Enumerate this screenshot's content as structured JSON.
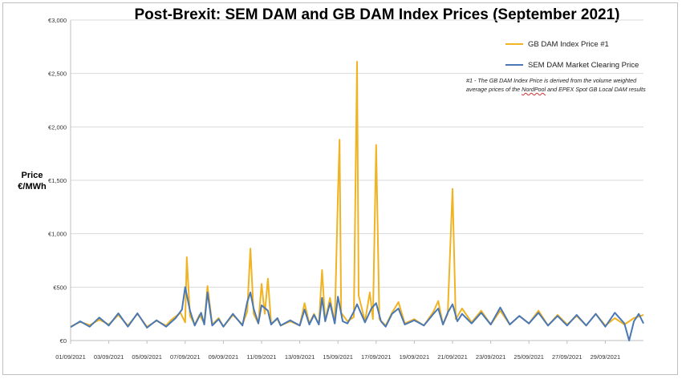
{
  "chart_data": {
    "type": "line",
    "title": "Post-Brexit: SEM DAM and GB DAM Index Prices (September 2021)",
    "ylabel_line1": "Price",
    "ylabel_line2": "€/MWh",
    "xlabel": "",
    "ylim": [
      0,
      3000
    ],
    "yticks": [
      0,
      500,
      1000,
      1500,
      2000,
      2500,
      3000
    ],
    "ytick_labels": [
      "€0",
      "€500",
      "€1,000",
      "€1,500",
      "€2,000",
      "€2,500",
      "€3,000"
    ],
    "x_start": "2021-09-01",
    "x_end": "2021-10-01",
    "xtick_labels": [
      "01/09/2021",
      "03/09/2021",
      "05/09/2021",
      "07/09/2021",
      "09/09/2021",
      "11/09/2021",
      "13/09/2021",
      "15/09/2021",
      "17/09/2021",
      "19/09/2021",
      "21/09/2021",
      "23/09/2021",
      "25/09/2021",
      "27/09/2021",
      "29/09/2021"
    ],
    "grid": "horizontal",
    "legend_position": "top-right",
    "series": [
      {
        "name": "GB DAM Index Price #1",
        "color": "#f0b323",
        "points": [
          [
            "2021-09-01",
            130
          ],
          [
            "2021-09-01 12:00",
            175
          ],
          [
            "2021-09-02",
            145
          ],
          [
            "2021-09-02 12:00",
            195
          ],
          [
            "2021-09-03",
            150
          ],
          [
            "2021-09-03 12:00",
            240
          ],
          [
            "2021-09-04",
            140
          ],
          [
            "2021-09-04 12:00",
            250
          ],
          [
            "2021-09-05",
            130
          ],
          [
            "2021-09-05 12:00",
            185
          ],
          [
            "2021-09-06",
            140
          ],
          [
            "2021-09-06 06:00",
            190
          ],
          [
            "2021-09-06 18:00",
            260
          ],
          [
            "2021-09-07",
            170
          ],
          [
            "2021-09-07 02:00",
            780
          ],
          [
            "2021-09-07 06:00",
            230
          ],
          [
            "2021-09-07 12:00",
            150
          ],
          [
            "2021-09-07 18:00",
            240
          ],
          [
            "2021-09-08",
            160
          ],
          [
            "2021-09-08 04:00",
            510
          ],
          [
            "2021-09-08 10:00",
            150
          ],
          [
            "2021-09-08 18:00",
            210
          ],
          [
            "2021-09-09",
            130
          ],
          [
            "2021-09-09 12:00",
            240
          ],
          [
            "2021-09-10",
            150
          ],
          [
            "2021-09-10 06:00",
            270
          ],
          [
            "2021-09-10 10:00",
            860
          ],
          [
            "2021-09-10 14:00",
            250
          ],
          [
            "2021-09-10 20:00",
            160
          ],
          [
            "2021-09-11",
            530
          ],
          [
            "2021-09-11 04:00",
            250
          ],
          [
            "2021-09-11 08:00",
            580
          ],
          [
            "2021-09-11 12:00",
            160
          ],
          [
            "2021-09-11 20:00",
            200
          ],
          [
            "2021-09-12",
            140
          ],
          [
            "2021-09-12 12:00",
            180
          ],
          [
            "2021-09-13",
            140
          ],
          [
            "2021-09-13 06:00",
            350
          ],
          [
            "2021-09-13 12:00",
            160
          ],
          [
            "2021-09-13 18:00",
            250
          ],
          [
            "2021-09-14",
            150
          ],
          [
            "2021-09-14 04:00",
            660
          ],
          [
            "2021-09-14 08:00",
            180
          ],
          [
            "2021-09-14 14:00",
            400
          ],
          [
            "2021-09-14 20:00",
            160
          ],
          [
            "2021-09-15",
            1370
          ],
          [
            "2021-09-15 02:00",
            1880
          ],
          [
            "2021-09-15 04:00",
            260
          ],
          [
            "2021-09-15 12:00",
            180
          ],
          [
            "2021-09-15 20:00",
            220
          ],
          [
            "2021-09-16",
            2610
          ],
          [
            "2021-09-16 02:00",
            420
          ],
          [
            "2021-09-16 10:00",
            180
          ],
          [
            "2021-09-16 16:00",
            450
          ],
          [
            "2021-09-16 20:00",
            200
          ],
          [
            "2021-09-17",
            1830
          ],
          [
            "2021-09-17 04:00",
            200
          ],
          [
            "2021-09-17 12:00",
            140
          ],
          [
            "2021-09-17 20:00",
            260
          ],
          [
            "2021-09-18 04:00",
            360
          ],
          [
            "2021-09-18 12:00",
            160
          ],
          [
            "2021-09-19",
            200
          ],
          [
            "2021-09-19 12:00",
            140
          ],
          [
            "2021-09-20",
            270
          ],
          [
            "2021-09-20 06:00",
            370
          ],
          [
            "2021-09-20 12:00",
            150
          ],
          [
            "2021-09-20 18:00",
            250
          ],
          [
            "2021-09-21",
            1420
          ],
          [
            "2021-09-21 04:00",
            200
          ],
          [
            "2021-09-21 12:00",
            300
          ],
          [
            "2021-09-22",
            170
          ],
          [
            "2021-09-22 12:00",
            280
          ],
          [
            "2021-09-23",
            150
          ],
          [
            "2021-09-23 12:00",
            280
          ],
          [
            "2021-09-24",
            150
          ],
          [
            "2021-09-24 12:00",
            230
          ],
          [
            "2021-09-25",
            160
          ],
          [
            "2021-09-25 12:00",
            280
          ],
          [
            "2021-09-26",
            140
          ],
          [
            "2021-09-26 12:00",
            240
          ],
          [
            "2021-09-27",
            150
          ],
          [
            "2021-09-27 12:00",
            230
          ],
          [
            "2021-09-28",
            140
          ],
          [
            "2021-09-28 12:00",
            250
          ],
          [
            "2021-09-29",
            140
          ],
          [
            "2021-09-29 12:00",
            210
          ],
          [
            "2021-09-30",
            150
          ],
          [
            "2021-09-30 12:00",
            210
          ],
          [
            "2021-10-01",
            240
          ]
        ]
      },
      {
        "name": "SEM DAM Market Clearing Price",
        "color": "#4a78b5",
        "points": [
          [
            "2021-09-01",
            125
          ],
          [
            "2021-09-01 12:00",
            180
          ],
          [
            "2021-09-02",
            130
          ],
          [
            "2021-09-02 12:00",
            215
          ],
          [
            "2021-09-03",
            140
          ],
          [
            "2021-09-03 12:00",
            255
          ],
          [
            "2021-09-04",
            130
          ],
          [
            "2021-09-04 12:00",
            255
          ],
          [
            "2021-09-05",
            120
          ],
          [
            "2021-09-05 12:00",
            190
          ],
          [
            "2021-09-06",
            130
          ],
          [
            "2021-09-06 12:00",
            210
          ],
          [
            "2021-09-06 20:00",
            290
          ],
          [
            "2021-09-07",
            500
          ],
          [
            "2021-09-07 06:00",
            280
          ],
          [
            "2021-09-07 12:00",
            140
          ],
          [
            "2021-09-07 20:00",
            260
          ],
          [
            "2021-09-08",
            150
          ],
          [
            "2021-09-08 04:00",
            450
          ],
          [
            "2021-09-08 10:00",
            140
          ],
          [
            "2021-09-08 18:00",
            200
          ],
          [
            "2021-09-09",
            130
          ],
          [
            "2021-09-09 12:00",
            250
          ],
          [
            "2021-09-10",
            140
          ],
          [
            "2021-09-10 06:00",
            360
          ],
          [
            "2021-09-10 10:00",
            450
          ],
          [
            "2021-09-10 14:00",
            300
          ],
          [
            "2021-09-10 20:00",
            160
          ],
          [
            "2021-09-11",
            330
          ],
          [
            "2021-09-11 08:00",
            280
          ],
          [
            "2021-09-11 12:00",
            150
          ],
          [
            "2021-09-11 20:00",
            210
          ],
          [
            "2021-09-12",
            140
          ],
          [
            "2021-09-12 12:00",
            190
          ],
          [
            "2021-09-13",
            140
          ],
          [
            "2021-09-13 06:00",
            290
          ],
          [
            "2021-09-13 12:00",
            150
          ],
          [
            "2021-09-13 18:00",
            240
          ],
          [
            "2021-09-14",
            150
          ],
          [
            "2021-09-14 04:00",
            400
          ],
          [
            "2021-09-14 08:00",
            180
          ],
          [
            "2021-09-14 14:00",
            350
          ],
          [
            "2021-09-14 20:00",
            160
          ],
          [
            "2021-09-15",
            410
          ],
          [
            "2021-09-15 06:00",
            180
          ],
          [
            "2021-09-15 12:00",
            160
          ],
          [
            "2021-09-15 20:00",
            270
          ],
          [
            "2021-09-16",
            340
          ],
          [
            "2021-09-16 10:00",
            170
          ],
          [
            "2021-09-16 18:00",
            300
          ],
          [
            "2021-09-17",
            350
          ],
          [
            "2021-09-17 06:00",
            180
          ],
          [
            "2021-09-17 12:00",
            130
          ],
          [
            "2021-09-17 20:00",
            250
          ],
          [
            "2021-09-18 04:00",
            300
          ],
          [
            "2021-09-18 12:00",
            150
          ],
          [
            "2021-09-19",
            190
          ],
          [
            "2021-09-19 12:00",
            140
          ],
          [
            "2021-09-20",
            250
          ],
          [
            "2021-09-20 06:00",
            300
          ],
          [
            "2021-09-20 12:00",
            150
          ],
          [
            "2021-09-20 18:00",
            260
          ],
          [
            "2021-09-21",
            340
          ],
          [
            "2021-09-21 06:00",
            180
          ],
          [
            "2021-09-21 12:00",
            250
          ],
          [
            "2021-09-22",
            160
          ],
          [
            "2021-09-22 12:00",
            260
          ],
          [
            "2021-09-23",
            150
          ],
          [
            "2021-09-23 12:00",
            310
          ],
          [
            "2021-09-24",
            150
          ],
          [
            "2021-09-24 12:00",
            230
          ],
          [
            "2021-09-25",
            160
          ],
          [
            "2021-09-25 12:00",
            260
          ],
          [
            "2021-09-26",
            140
          ],
          [
            "2021-09-26 12:00",
            230
          ],
          [
            "2021-09-27",
            140
          ],
          [
            "2021-09-27 12:00",
            240
          ],
          [
            "2021-09-28",
            140
          ],
          [
            "2021-09-28 12:00",
            250
          ],
          [
            "2021-09-29",
            130
          ],
          [
            "2021-09-29 12:00",
            260
          ],
          [
            "2021-09-30",
            160
          ],
          [
            "2021-09-30 06:00",
            0
          ],
          [
            "2021-09-30 12:00",
            180
          ],
          [
            "2021-09-30 18:00",
            250
          ],
          [
            "2021-10-01",
            160
          ]
        ]
      }
    ],
    "footnote_line1": "#1 - The GB DAM Index Price is derived from the volume weighted",
    "footnote_line2_pre": "average prices of the ",
    "footnote_line2_word": "NordPool",
    "footnote_line2_post": " and EPEX Spot GB Local DAM results"
  }
}
